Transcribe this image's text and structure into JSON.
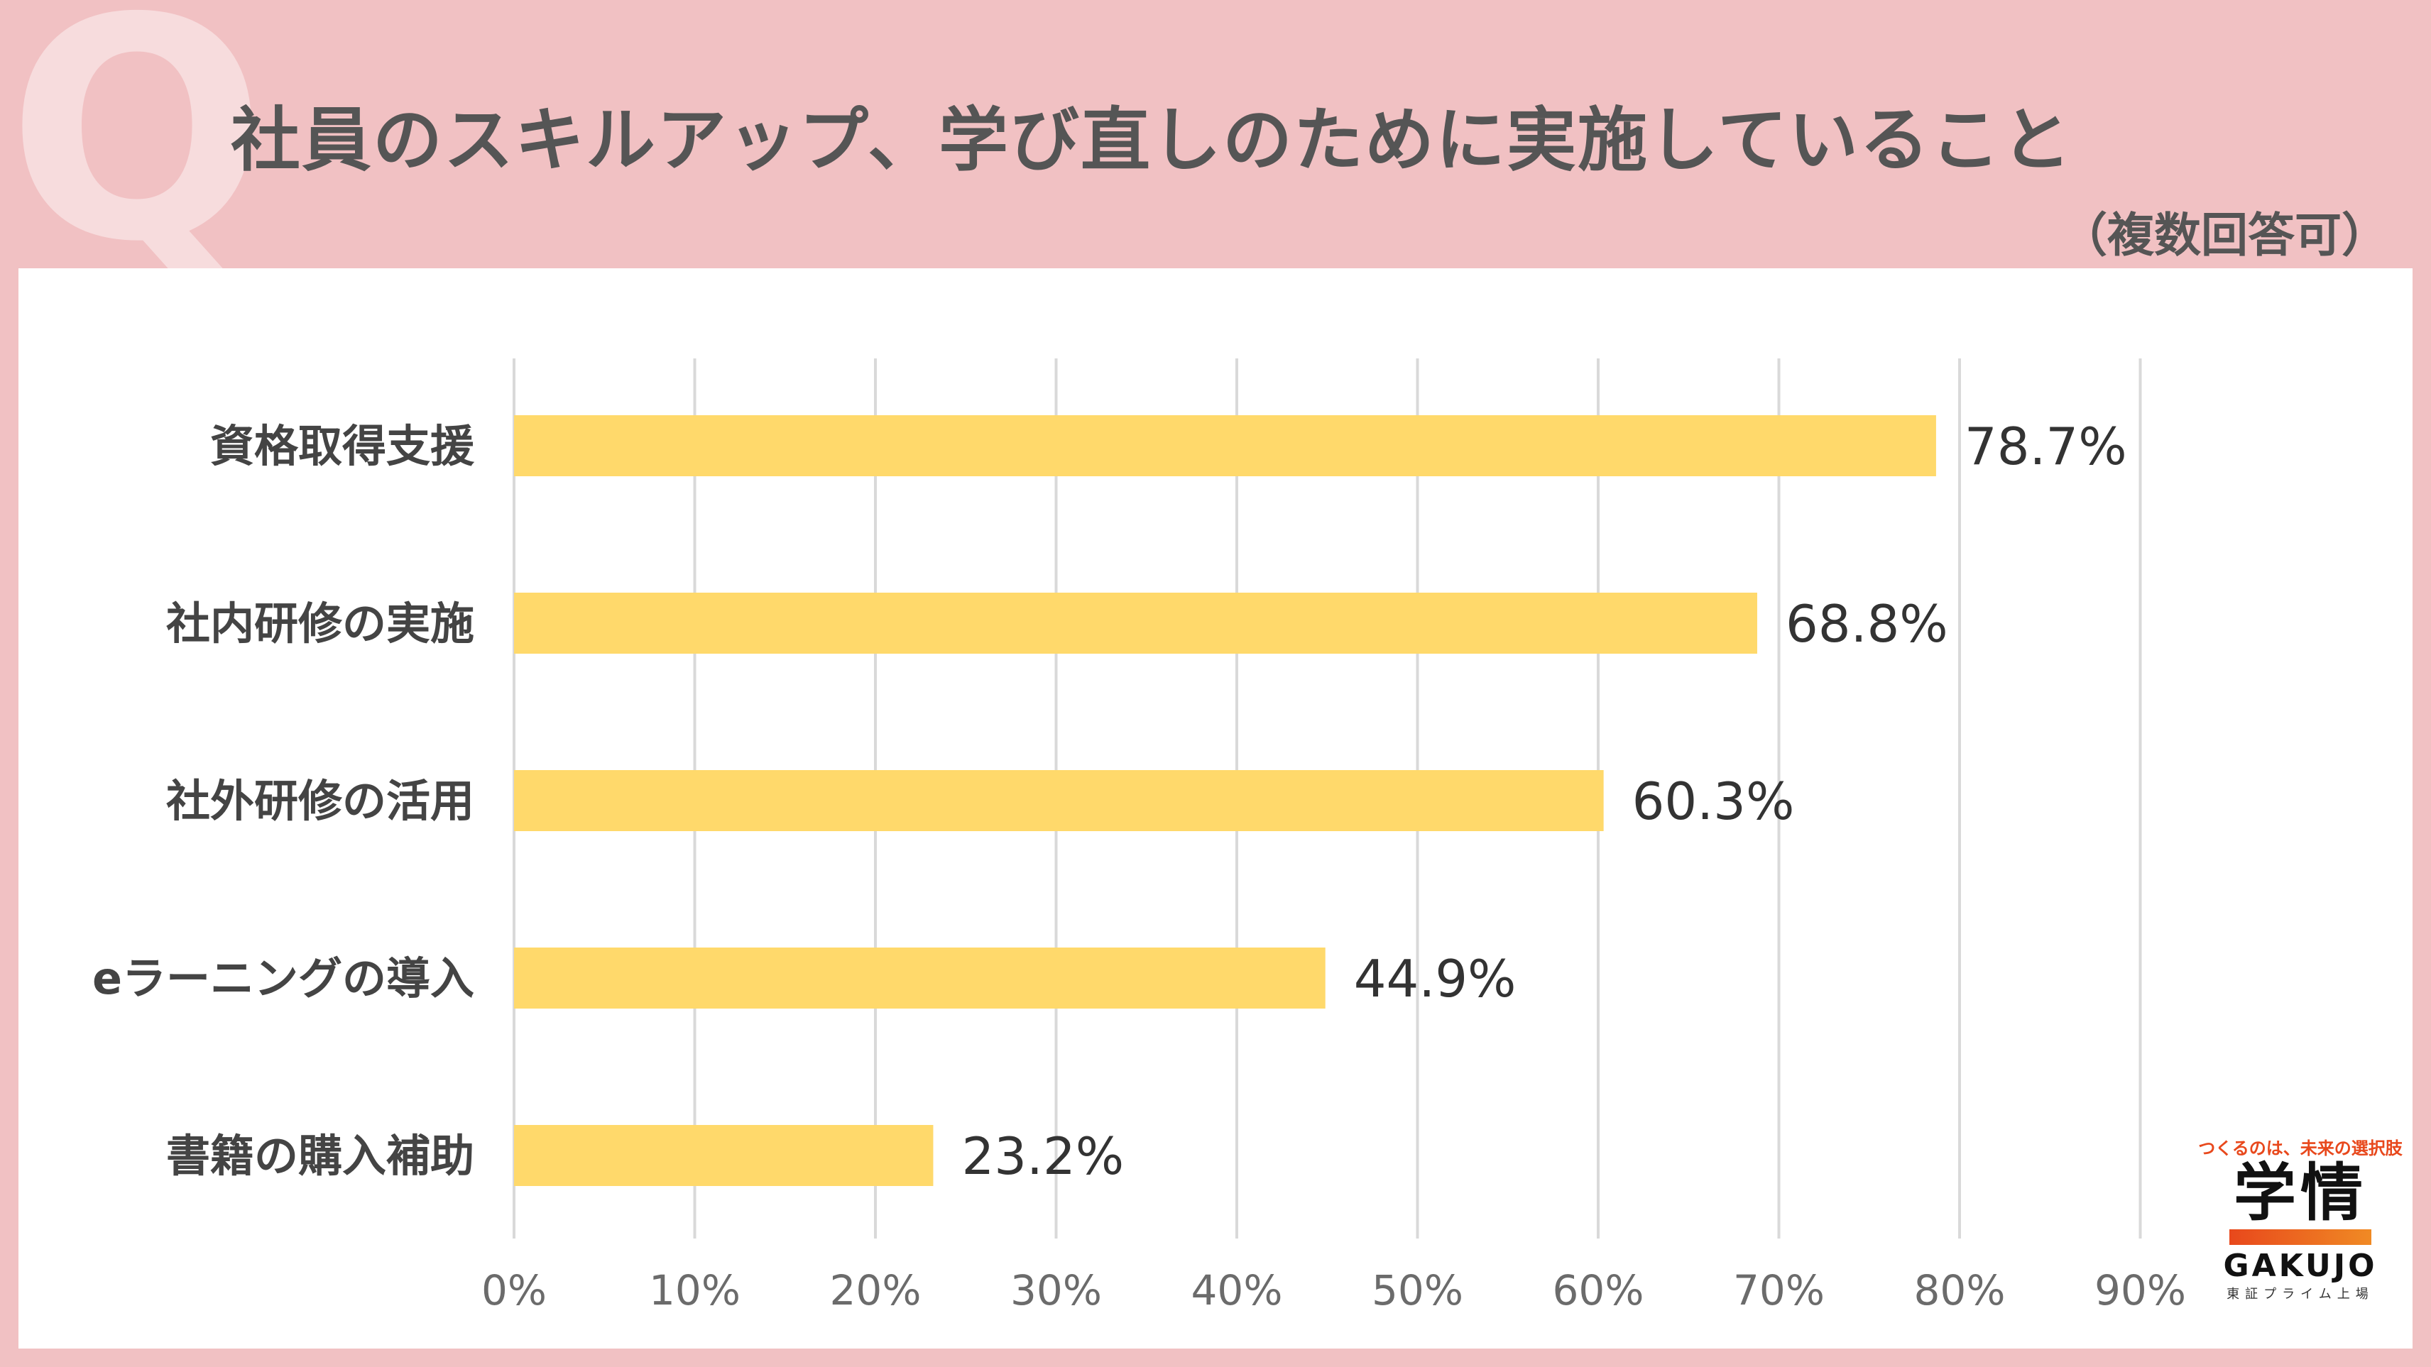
{
  "header": {
    "q_mark": "Q",
    "title": "社員のスキルアップ、学び直しのために実施していること",
    "subtitle": "（複数回答可）"
  },
  "logo": {
    "tagline": "つくるのは、未来の選択肢",
    "kanji": "学情",
    "english": "GAKUJO",
    "sub": "東証プライム上場"
  },
  "colors": {
    "background": "#f1c1c3",
    "bar": "#ffd96b",
    "grid": "#d9d9d9",
    "text": "#555555",
    "logo_accent": "#e8481c"
  },
  "chart_data": {
    "type": "bar",
    "orientation": "horizontal",
    "title": "社員のスキルアップ、学び直しのために実施していること",
    "subtitle": "（複数回答可）",
    "categories": [
      "資格取得支援",
      "社内研修の実施",
      "社外研修の活用",
      "eラーニングの導入",
      "書籍の購入補助"
    ],
    "values": [
      78.7,
      68.8,
      60.3,
      44.9,
      23.2
    ],
    "data_labels": [
      "78.7%",
      "68.8%",
      "60.3%",
      "44.9%",
      "23.2%"
    ],
    "xlim": [
      0,
      90
    ],
    "x_ticks": [
      0,
      10,
      20,
      30,
      40,
      50,
      60,
      70,
      80,
      90
    ],
    "x_tick_labels": [
      "0%",
      "10%",
      "20%",
      "30%",
      "40%",
      "50%",
      "60%",
      "70%",
      "80%",
      "90%"
    ],
    "grid": true,
    "legend": "none"
  }
}
